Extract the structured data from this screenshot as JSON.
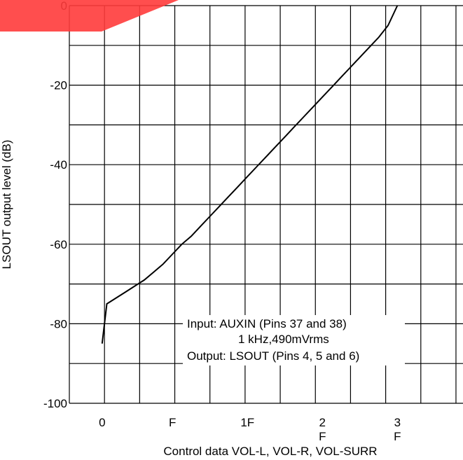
{
  "chart_data": {
    "type": "line",
    "title": "",
    "xlabel": "Control data VOL-L, VOL-R, VOL-SURR",
    "ylabel": "LSOUT output level (dB)",
    "x_tick_labels": [
      {
        "x": 0,
        "lines": [
          "0"
        ]
      },
      {
        "x": 15,
        "lines": [
          "F"
        ]
      },
      {
        "x": 31,
        "lines": [
          "1F"
        ]
      },
      {
        "x": 47,
        "lines": [
          "2",
          "F"
        ]
      },
      {
        "x": 63,
        "lines": [
          "3",
          "F"
        ]
      }
    ],
    "xlim": [
      -7,
      77
    ],
    "y_ticks": [
      0,
      -20,
      -40,
      -60,
      -80,
      -100
    ],
    "ylim": [
      -100,
      0
    ],
    "grid": true,
    "annotation_lines": [
      "Input:    AUXIN (Pins 37 and 38)",
      "1 kHz,490mVrms",
      "Output: LSOUT (Pins 4, 5 and 6)"
    ],
    "series": [
      {
        "x": [
          0,
          1,
          3,
          5,
          7,
          9,
          11,
          13,
          15,
          17,
          19,
          21,
          23,
          25,
          27,
          29,
          31,
          33,
          35,
          37,
          39,
          41,
          43,
          45,
          47,
          49,
          51,
          53,
          55,
          57,
          59,
          61,
          63
        ],
        "values": [
          -85,
          -75,
          -73.5,
          -72,
          -70.5,
          -69,
          -67,
          -65,
          -62.5,
          -60,
          -58,
          -55.5,
          -53,
          -50.5,
          -48,
          -45.5,
          -43,
          -40.5,
          -38,
          -35.5,
          -33,
          -30.5,
          -28,
          -25.5,
          -23,
          -20.5,
          -18,
          -15.5,
          -13,
          -10.5,
          -8,
          -5,
          0
        ]
      }
    ]
  }
}
